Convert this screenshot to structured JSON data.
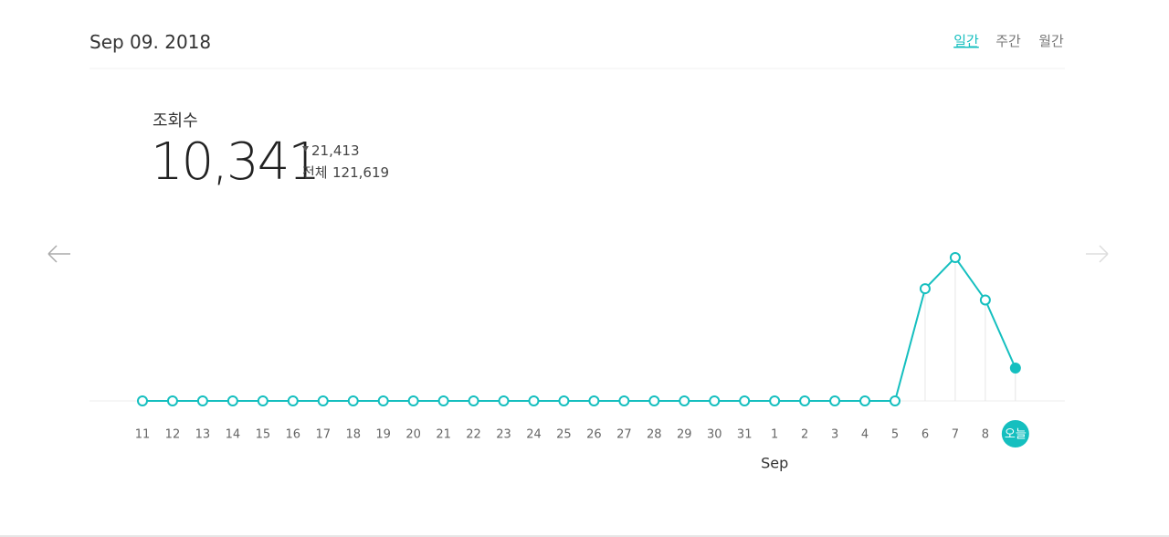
{
  "header": {
    "date": "Sep 09. 2018",
    "tabs": [
      "일간",
      "주간",
      "월간"
    ]
  },
  "stats": {
    "label": "조회수",
    "value": "10,341",
    "change": "21,413",
    "total_label": "전체",
    "total": "121,619"
  },
  "chart_data": {
    "type": "line",
    "color": "#15bfbf",
    "categories": [
      "11",
      "12",
      "13",
      "14",
      "15",
      "16",
      "17",
      "18",
      "19",
      "20",
      "21",
      "22",
      "23",
      "24",
      "25",
      "26",
      "27",
      "28",
      "29",
      "30",
      "31",
      "1",
      "2",
      "3",
      "4",
      "5",
      "6",
      "7",
      "8",
      "오늘"
    ],
    "month_label": "Sep",
    "values": [
      0,
      0,
      0,
      0,
      0,
      0,
      0,
      0,
      0,
      0,
      0,
      0,
      0,
      0,
      0,
      0,
      0,
      0,
      0,
      0,
      0,
      0,
      0,
      0,
      0,
      0,
      35300,
      45100,
      31754,
      10341
    ]
  }
}
